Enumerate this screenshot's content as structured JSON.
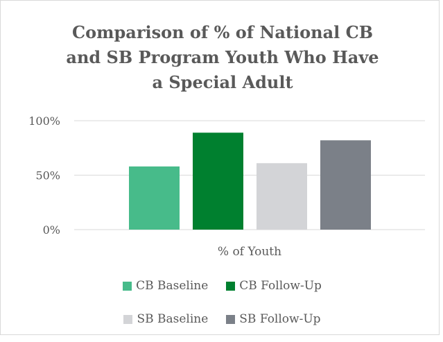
{
  "chart_data": {
    "type": "bar",
    "title_lines": [
      "Comparison of % of  National CB",
      "and SB Program Youth Who Have",
      "a Special Adult"
    ],
    "categories": [
      "% of Youth"
    ],
    "series": [
      {
        "name": "CB Baseline",
        "values": [
          58
        ],
        "color": "#47bb8a"
      },
      {
        "name": "CB Follow-Up",
        "values": [
          89
        ],
        "color": "#00802f"
      },
      {
        "name": "SB Baseline",
        "values": [
          61
        ],
        "color": "#d3d4d7"
      },
      {
        "name": "SB Follow-Up",
        "values": [
          82
        ],
        "color": "#7b8088"
      }
    ],
    "yticks": [
      "0%",
      "50%",
      "100%"
    ],
    "ylim": [
      0,
      100
    ],
    "grid": true,
    "legend_position": "bottom"
  }
}
